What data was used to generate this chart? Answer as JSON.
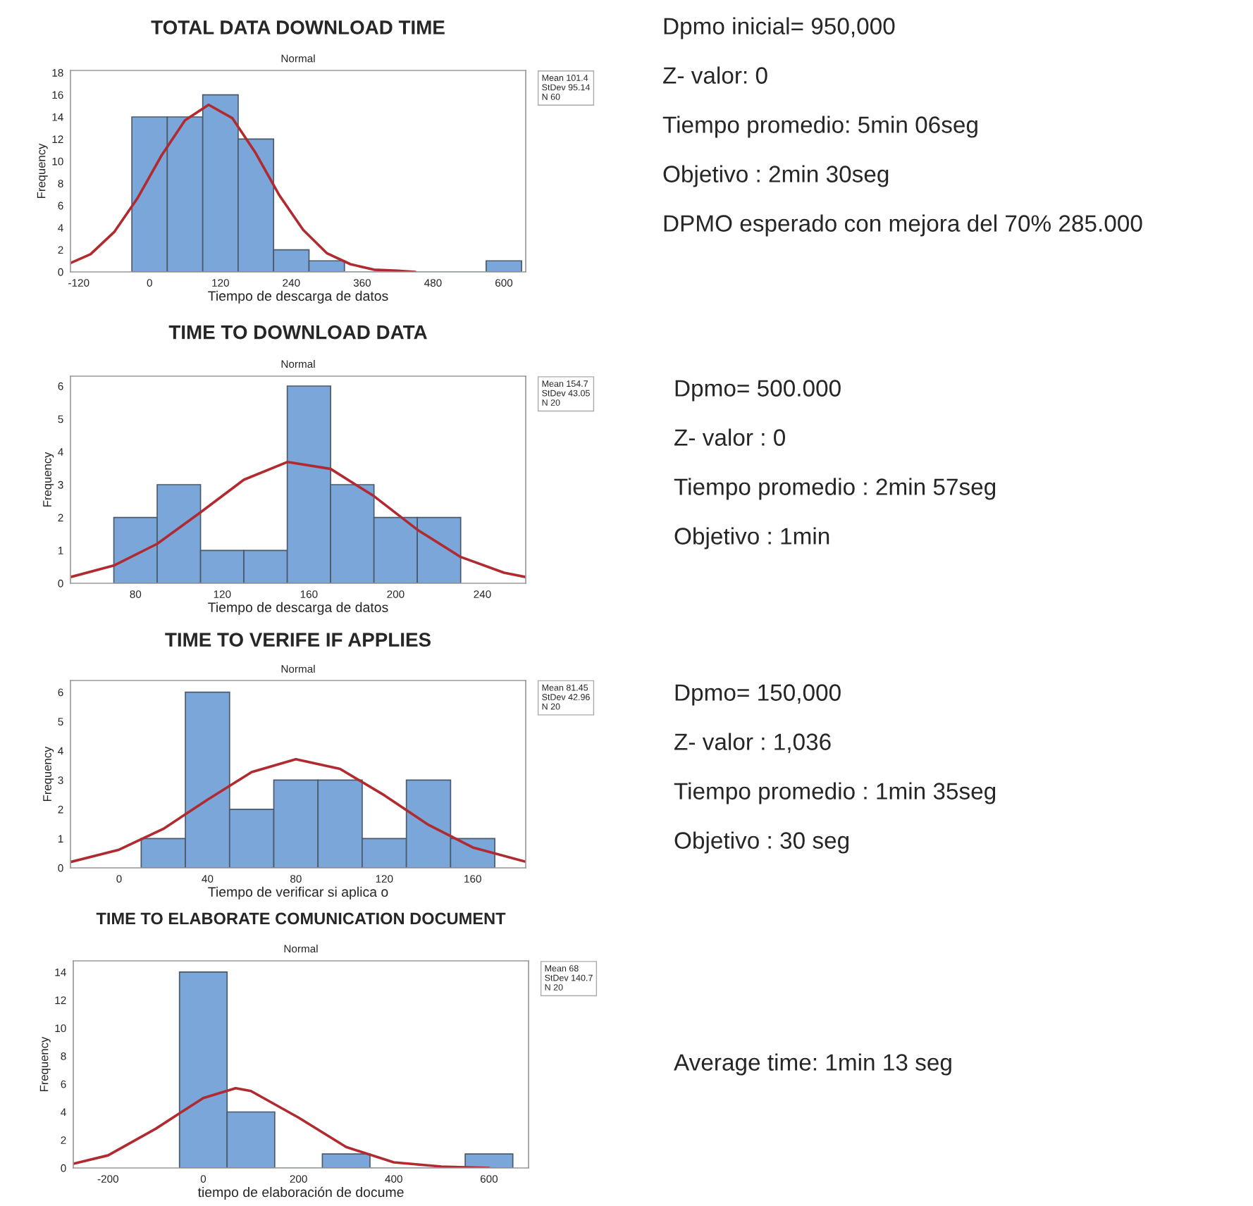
{
  "chart_data": [
    {
      "type": "histogram",
      "title": "TOTAL DATA DOWNLOAD TIME",
      "subtitle": "Normal",
      "xlabel": "Tiempo de descarga de datos",
      "ylabel": "Frequency",
      "bins": [
        -30,
        30,
        90,
        150,
        210,
        270,
        330,
        390,
        450,
        510,
        570,
        630
      ],
      "values": [
        14,
        14,
        16,
        12,
        2,
        1,
        0,
        0,
        0,
        0,
        1
      ],
      "color": "#7aa6d9",
      "series": [
        {
          "type": "line",
          "color": "#b02a30",
          "x": [
            -134,
            -100,
            -60,
            -20,
            20,
            60,
            100,
            140,
            180,
            220,
            260,
            300,
            340,
            380,
            420,
            450
          ],
          "values": [
            0.8,
            1.6,
            3.6,
            6.7,
            10.5,
            13.7,
            15.1,
            13.9,
            10.7,
            6.9,
            3.8,
            1.7,
            0.7,
            0.2,
            0.1,
            0.0
          ]
        }
      ],
      "xlim": [
        -134,
        637
      ],
      "xticks": [
        -120,
        0,
        120,
        240,
        360,
        480,
        600
      ],
      "ylim": [
        0,
        18.2
      ],
      "yticks": [
        0,
        2,
        4,
        6,
        8,
        10,
        12,
        14,
        16,
        18
      ],
      "grid": false,
      "annotations": [
        "Mean 101.4\nStDev 95.14\nN 60",
        "Dpmo inicial= 950,000",
        "Z- valor: 0",
        "Tiempo promedio: 5min 06seg",
        "Objetivo : 2min 30seg",
        "DPMO esperado con mejora del 70% 285.000"
      ]
    },
    {
      "type": "histogram",
      "title": "TIME TO DOWNLOAD DATA",
      "subtitle": "Normal",
      "xlabel": "Tiempo de descarga de datos",
      "ylabel": "Frequency",
      "bins": [
        70,
        90,
        110,
        130,
        150,
        170,
        190,
        210,
        230
      ],
      "values": [
        2,
        3,
        1,
        1,
        6,
        3,
        2,
        2
      ],
      "color": "#7aa6d9",
      "series": [
        {
          "type": "line",
          "color": "#b02a30",
          "x": [
            50,
            70,
            90,
            110,
            130,
            150,
            170,
            190,
            210,
            230,
            250,
            260
          ],
          "values": [
            0.19,
            0.54,
            1.2,
            2.16,
            3.15,
            3.69,
            3.48,
            2.65,
            1.63,
            0.8,
            0.32,
            0.19
          ]
        }
      ],
      "xlim": [
        50,
        260
      ],
      "xticks": [
        80,
        120,
        160,
        200,
        240
      ],
      "ylim": [
        0,
        6.3
      ],
      "yticks": [
        0,
        1,
        2,
        3,
        4,
        5,
        6
      ],
      "grid": false,
      "annotations": [
        "Mean 154.7\nStDev 43.05\nN 20",
        "Dpmo= 500.000",
        "Z- valor : 0",
        "Tiempo promedio : 2min 57seg",
        "Objetivo : 1min"
      ]
    },
    {
      "type": "histogram",
      "title": "TIME TO VERIFE IF APPLIES",
      "subtitle": "Normal",
      "xlabel": "Tiempo de verificar si aplica o",
      "ylabel": "Frequency",
      "bins": [
        10,
        30,
        50,
        70,
        90,
        110,
        130,
        150,
        170
      ],
      "values": [
        1,
        6,
        2,
        3,
        3,
        1,
        3,
        1
      ],
      "color": "#7aa6d9",
      "series": [
        {
          "type": "line",
          "color": "#b02a30",
          "x": [
            -22,
            0,
            20,
            40,
            60,
            80,
            100,
            120,
            140,
            160,
            184
          ],
          "values": [
            0.2,
            0.62,
            1.33,
            2.33,
            3.27,
            3.71,
            3.38,
            2.48,
            1.47,
            0.7,
            0.21
          ]
        }
      ],
      "xlim": [
        -22,
        184
      ],
      "xticks": [
        0,
        40,
        80,
        120,
        160
      ],
      "ylim": [
        0,
        6.4
      ],
      "yticks": [
        0,
        1,
        2,
        3,
        4,
        5,
        6
      ],
      "grid": false,
      "annotations": [
        "Mean 81.45\nStDev 42.96\nN 20",
        "Dpmo= 150,000",
        "Z- valor : 1,036",
        "Tiempo promedio : 1min 35seg",
        "Objetivo : 30 seg"
      ]
    },
    {
      "type": "histogram",
      "title": "TIME TO ELABORATE COMUNICATION DOCUMENT",
      "subtitle": "Normal",
      "xlabel": "tiempo de elaboración de docume",
      "ylabel": "Frequency",
      "bins": [
        -50,
        50,
        150,
        250,
        350,
        450,
        550,
        650
      ],
      "values": [
        14,
        4,
        0,
        1,
        0,
        0,
        1
      ],
      "color": "#7aa6d9",
      "series": [
        {
          "type": "line",
          "color": "#b02a30",
          "x": [
            -273,
            -200,
            -100,
            0,
            68,
            100,
            200,
            300,
            400,
            500,
            600
          ],
          "values": [
            0.3,
            0.9,
            2.8,
            5.0,
            5.7,
            5.5,
            3.6,
            1.5,
            0.4,
            0.1,
            0.0
          ]
        }
      ],
      "xlim": [
        -273,
        683
      ],
      "xticks": [
        -200,
        0,
        200,
        400,
        600
      ],
      "ylim": [
        0,
        14.8
      ],
      "yticks": [
        0,
        2,
        4,
        6,
        8,
        10,
        12,
        14
      ],
      "grid": false,
      "annotations": [
        "Mean 68\nStDev 140.7\nN 20",
        "Average time: 1min 13 seg"
      ]
    }
  ]
}
